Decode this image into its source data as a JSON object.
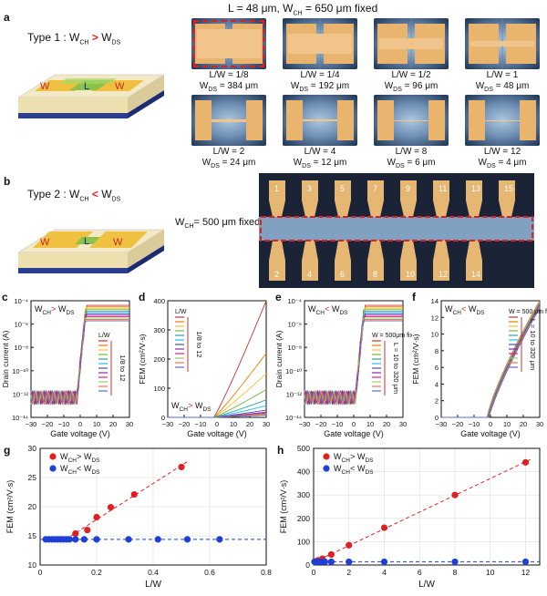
{
  "panel_labels": {
    "a": "a",
    "b": "b",
    "c": "c",
    "d": "d",
    "e": "e",
    "f": "f",
    "g": "g",
    "h": "h"
  },
  "panel_a": {
    "header": "L = 48 μm, W",
    "header_sub": "CH",
    "header_tail": " = 650 μm fixed",
    "type_label": "Type 1 : W",
    "type_sub_ch": "CH",
    "type_cmp": ">",
    "type_w": "W",
    "type_sub_ds": "DS",
    "device_wch": "W",
    "device_wds": "W",
    "device_l": "L",
    "images": [
      {
        "lw": "L/W = 1/8",
        "wds": "= 384 μm"
      },
      {
        "lw": "L/W = 1/4",
        "wds": "= 192 μm"
      },
      {
        "lw": "L/W = 1/2",
        "wds": "= 96 μm"
      },
      {
        "lw": "L/W = 1",
        "wds": "= 48 μm"
      },
      {
        "lw": "L/W = 2",
        "wds": "= 24 μm"
      },
      {
        "lw": "L/W = 4",
        "wds": "= 12 μm"
      },
      {
        "lw": "L/W = 8",
        "wds": "= 6 μm"
      },
      {
        "lw": "L/W = 12",
        "wds": "= 4 μm"
      }
    ],
    "wds_prefix": "W",
    "wds_sub": "DS"
  },
  "panel_b": {
    "type_label": "Type 2 : W",
    "type_sub_ch": "CH",
    "type_cmp": "<",
    "type_w": "W",
    "type_sub_ds": "DS",
    "wch_fixed": "W",
    "wch_fixed_sub": "CH",
    "wch_fixed_tail": "= 500 μm fixed",
    "top_numbers": [
      "1",
      "3",
      "5",
      "7",
      "9",
      "11",
      "13",
      "15"
    ],
    "bottom_numbers": [
      "2",
      "4",
      "6",
      "8",
      "10",
      "12",
      "14"
    ]
  },
  "panel_c": {
    "ylabel": "Drain current (A)",
    "xlabel": "Gate voltage (V)",
    "legend_title": "L/W",
    "legend_range": "1/8 to 12",
    "cond": "W",
    "cond_sub1": "CH",
    "cond_cmp": ">",
    "cond_w2": "W",
    "cond_sub2": "DS",
    "yticks": [
      "10⁻⁴",
      "10⁻⁶",
      "10⁻⁸",
      "10⁻¹⁰",
      "10⁻¹²",
      "10⁻¹⁴"
    ],
    "xticks": [
      "−30",
      "−20",
      "−10",
      "0",
      "10",
      "20",
      "30"
    ]
  },
  "panel_d": {
    "ylabel": "FEM (cm²/V·s)",
    "xlabel": "Gate voltage (V)",
    "legend_title": "L/W",
    "legend_range": "1/8 to 12",
    "cond": "W",
    "cond_sub1": "CH",
    "cond_cmp": ">",
    "cond_w2": "W",
    "cond_sub2": "DS",
    "yticks": [
      "400",
      "300",
      "200",
      "100",
      "0"
    ],
    "xticks": [
      "−30",
      "−20",
      "−10",
      "0",
      "10",
      "20",
      "30"
    ]
  },
  "panel_e": {
    "ylabel": "Drain current (A)",
    "xlabel": "Gate voltage (V)",
    "legend_title": "W = 500μm fixed",
    "legend_range": "L = 10 to 320 μm",
    "cond": "W",
    "cond_sub1": "CH",
    "cond_cmp": "<",
    "cond_w2": "W",
    "cond_sub2": "DS",
    "yticks": [
      "10⁻⁴",
      "10⁻⁶",
      "10⁻⁸",
      "10⁻¹⁰",
      "10⁻¹²",
      "10⁻¹⁴"
    ],
    "xticks": [
      "−30",
      "−20",
      "−10",
      "0",
      "10",
      "20",
      "30"
    ]
  },
  "panel_f": {
    "ylabel": "FEM (cm²/V·s)",
    "xlabel": "Gate voltage (V)",
    "legend_title": "W = 500 μm fixed",
    "legend_range": "L = 10 to 320 μm",
    "cond": "W",
    "cond_sub1": "CH",
    "cond_cmp": "<",
    "cond_w2": "W",
    "cond_sub2": "DS",
    "yticks": [
      "14",
      "12",
      "10",
      "8",
      "6",
      "4",
      "2",
      "0"
    ],
    "xticks": [
      "−30",
      "−20",
      "−10",
      "0",
      "10",
      "20",
      "30"
    ]
  },
  "colors": {
    "red": "#e02020",
    "blue": "#1f3fd6",
    "gold": "#f0c040",
    "green": "#8bc34a"
  },
  "chart_data": [
    {
      "panel": "g",
      "type": "scatter",
      "xlabel": "L/W",
      "ylabel": "FEM (cm²/V·s)",
      "xlim": [
        0,
        0.8
      ],
      "ylim": [
        10,
        30
      ],
      "xticks": [
        0,
        0.2,
        0.4,
        0.6,
        0.8
      ],
      "yticks": [
        10,
        15,
        20,
        25,
        30
      ],
      "series": [
        {
          "name": "W_CH > W_DS",
          "color": "#e02020",
          "x": [
            0.125,
            0.167,
            0.2,
            0.25,
            0.333,
            0.5
          ],
          "y": [
            15.4,
            16.0,
            18.2,
            19.9,
            22.1,
            26.8
          ]
        },
        {
          "name": "W_CH < W_DS",
          "color": "#1f3fd6",
          "x": [
            0.02,
            0.031,
            0.042,
            0.052,
            0.063,
            0.073,
            0.083,
            0.094,
            0.104,
            0.125,
            0.156,
            0.2,
            0.313,
            0.417,
            0.521,
            0.635
          ],
          "y": [
            14.4,
            14.4,
            14.4,
            14.4,
            14.4,
            14.4,
            14.4,
            14.4,
            14.4,
            14.4,
            14.4,
            14.4,
            14.4,
            14.4,
            14.4,
            14.4
          ]
        }
      ],
      "legend": [
        {
          "text": "W",
          "sub1": "CH",
          "cmp": ">",
          "w2": "W",
          "sub2": "DS"
        },
        {
          "text": "W",
          "sub1": "CH",
          "cmp": "<",
          "w2": "W",
          "sub2": "DS"
        }
      ]
    },
    {
      "panel": "h",
      "type": "scatter",
      "xlabel": "L/W",
      "ylabel": "FEM (cm²/V·s)",
      "xlim": [
        0,
        12.8
      ],
      "ylim": [
        0,
        500
      ],
      "xticks": [
        0,
        2,
        4,
        6,
        8,
        10,
        12
      ],
      "yticks": [
        0,
        100,
        200,
        300,
        400,
        500
      ],
      "series": [
        {
          "name": "W_CH > W_DS",
          "color": "#e02020",
          "x": [
            0.125,
            0.25,
            0.5,
            1,
            2,
            4,
            8,
            12
          ],
          "y": [
            15,
            20,
            27,
            45,
            85,
            160,
            300,
            440
          ]
        },
        {
          "name": "W_CH < W_DS",
          "color": "#1f3fd6",
          "x": [
            0.05,
            0.1,
            0.2,
            0.3,
            0.5,
            0.64,
            1,
            2,
            4,
            8,
            12
          ],
          "y": [
            14,
            14,
            14,
            14,
            14,
            14,
            14,
            14,
            14,
            14,
            14
          ]
        }
      ],
      "legend": [
        {
          "text": "W",
          "sub1": "CH",
          "cmp": ">",
          "w2": "W",
          "sub2": "DS"
        },
        {
          "text": "W",
          "sub1": "CH",
          "cmp": "<",
          "w2": "W",
          "sub2": "DS"
        }
      ]
    }
  ]
}
